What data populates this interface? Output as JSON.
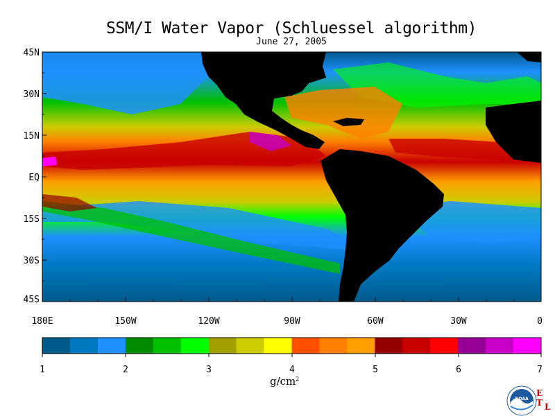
{
  "header": {
    "title": "SSM/I Water Vapor (Schluessel algorithm)",
    "date": "June 27, 2005"
  },
  "map": {
    "lat_labels": [
      "45N",
      "30N",
      "15N",
      "EQ",
      "15S",
      "30S",
      "45S"
    ],
    "lon_labels": [
      "180E",
      "150W",
      "120W",
      "90W",
      "60W",
      "30W",
      "0"
    ],
    "lat_range": [
      -45,
      45
    ],
    "lon_range": [
      -180,
      0
    ]
  },
  "colorbar": {
    "tick_labels": [
      "1",
      "2",
      "3",
      "4",
      "5",
      "6",
      "7"
    ],
    "range": [
      1,
      7
    ],
    "unit_base": "g/cm",
    "unit_exp": "2",
    "colors": [
      "#005a8c",
      "#0078c0",
      "#1e90ff",
      "#008c00",
      "#00c000",
      "#00ff00",
      "#a0a000",
      "#cccc00",
      "#ffff00",
      "#ff5000",
      "#ff7f00",
      "#ffa000",
      "#960000",
      "#c80000",
      "#ff0000",
      "#960096",
      "#c800c8",
      "#ff00ff"
    ]
  },
  "logos": {
    "noaa_text": "NOAA",
    "etl_letters": [
      "E",
      "T",
      "L"
    ]
  }
}
